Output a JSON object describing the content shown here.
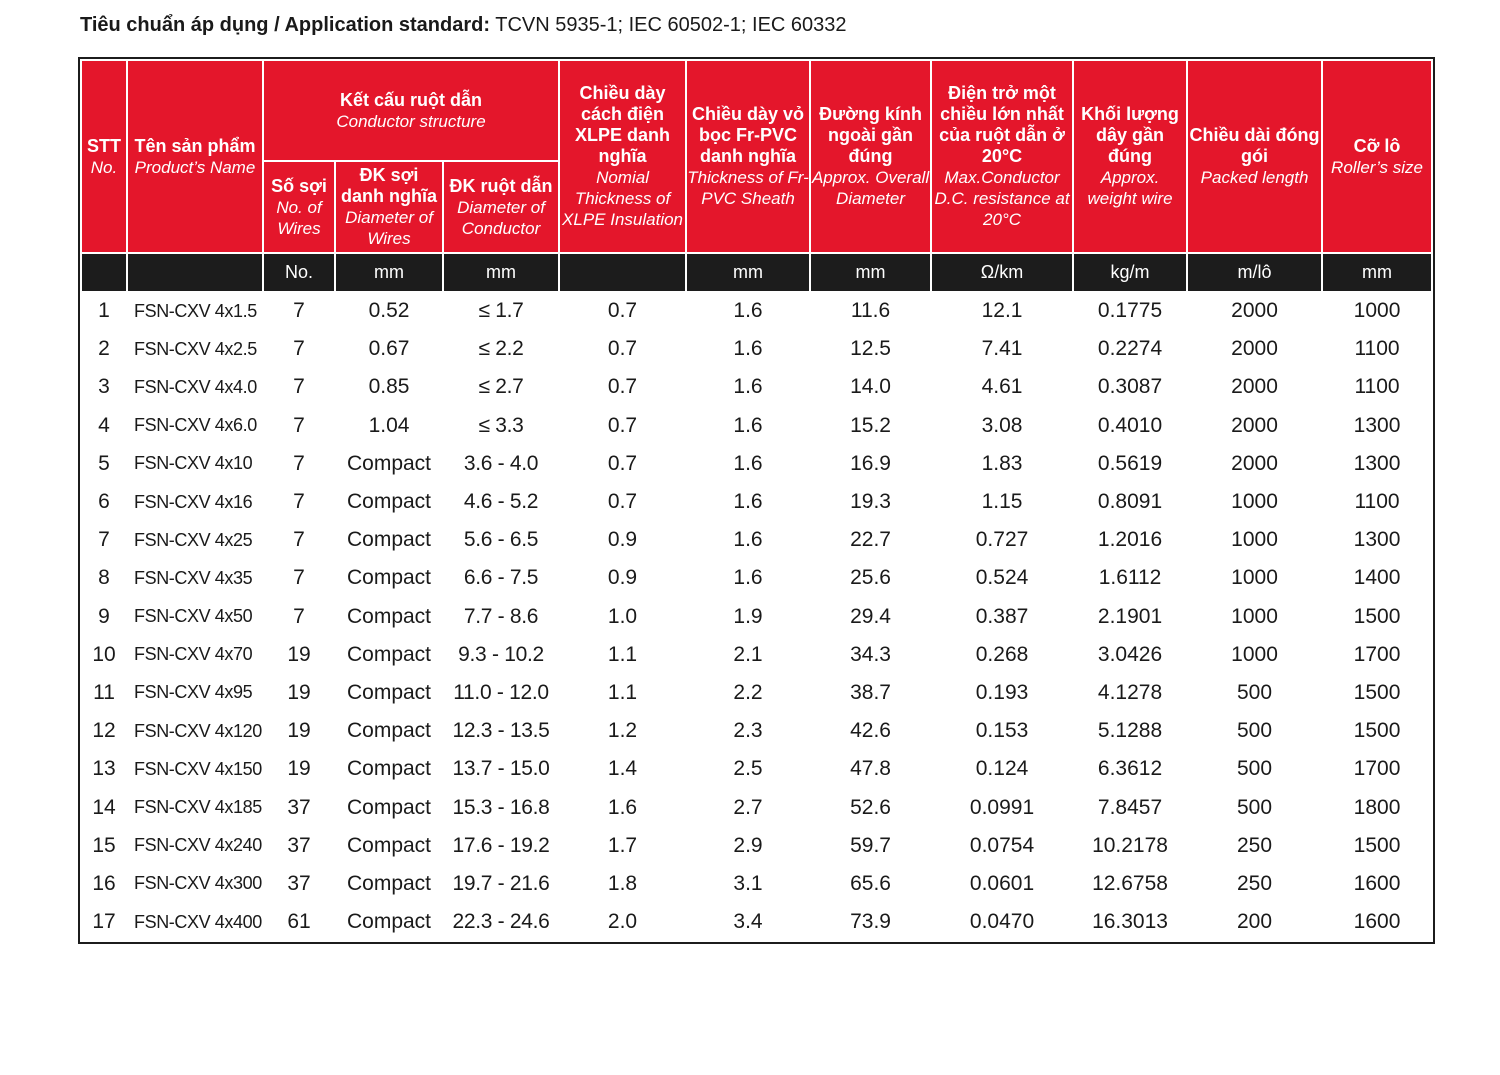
{
  "standard": {
    "label": "Tiêu chuẩn áp dụng / Application standard:",
    "value": "TCVN 5935-1; IEC 60502-1; IEC 60332"
  },
  "headers": {
    "stt": {
      "vi": "STT",
      "en": "No."
    },
    "name": {
      "vi": "Tên sản phẩm",
      "en": "Product’s Name"
    },
    "conductor": {
      "vi": "Kết cấu ruột dẫn",
      "en": "Conductor structure"
    },
    "wires": {
      "vi": "Số sợi",
      "en": "No. of Wires"
    },
    "wire_dia": {
      "vi": "ĐK sợi danh nghĩa",
      "en": "Diameter of Wires"
    },
    "cond_dia": {
      "vi": "ĐK ruột dẫn",
      "en": "Diameter of Conductor"
    },
    "insulation": {
      "vi": "Chiều dày cách điện XLPE danh nghĩa",
      "en": "Nomial Thickness of XLPE Insulation"
    },
    "sheath": {
      "vi": "Chiều dày vỏ bọc Fr-PVC danh nghĩa",
      "en": "Thickness of Fr-PVC Sheath"
    },
    "diameter": {
      "vi": "Đường kính ngoài gần đúng",
      "en": "Approx. Overall Diameter"
    },
    "resistance": {
      "vi": "Điện trở một chiều lớn nhất của ruột dẫn ở 20°C",
      "en": "Max.Conductor D.C. resistance at 20°C"
    },
    "weight": {
      "vi": "Khối lượng dây gần đúng",
      "en": "Approx. weight wire"
    },
    "length": {
      "vi": "Chiều dài đóng gói",
      "en": "Packed length"
    },
    "roller": {
      "vi": "Cỡ lô",
      "en": "Roller’s size"
    }
  },
  "units": [
    "",
    "",
    "No.",
    "mm",
    "mm",
    "",
    "mm",
    "mm",
    "Ω/km",
    "kg/m",
    "m/lô",
    "mm"
  ],
  "rows": [
    [
      "1",
      "FSN-CXV 4x1.5",
      "7",
      "0.52",
      "≤ 1.7",
      "0.7",
      "1.6",
      "11.6",
      "12.1",
      "0.1775",
      "2000",
      "1000"
    ],
    [
      "2",
      "FSN-CXV 4x2.5",
      "7",
      "0.67",
      "≤ 2.2",
      "0.7",
      "1.6",
      "12.5",
      "7.41",
      "0.2274",
      "2000",
      "1100"
    ],
    [
      "3",
      "FSN-CXV 4x4.0",
      "7",
      "0.85",
      "≤ 2.7",
      "0.7",
      "1.6",
      "14.0",
      "4.61",
      "0.3087",
      "2000",
      "1100"
    ],
    [
      "4",
      "FSN-CXV 4x6.0",
      "7",
      "1.04",
      "≤ 3.3",
      "0.7",
      "1.6",
      "15.2",
      "3.08",
      "0.4010",
      "2000",
      "1300"
    ],
    [
      "5",
      "FSN-CXV 4x10",
      "7",
      "Compact",
      "3.6 - 4.0",
      "0.7",
      "1.6",
      "16.9",
      "1.83",
      "0.5619",
      "2000",
      "1300"
    ],
    [
      "6",
      "FSN-CXV 4x16",
      "7",
      "Compact",
      "4.6 - 5.2",
      "0.7",
      "1.6",
      "19.3",
      "1.15",
      "0.8091",
      "1000",
      "1100"
    ],
    [
      "7",
      "FSN-CXV 4x25",
      "7",
      "Compact",
      "5.6 - 6.5",
      "0.9",
      "1.6",
      "22.7",
      "0.727",
      "1.2016",
      "1000",
      "1300"
    ],
    [
      "8",
      "FSN-CXV 4x35",
      "7",
      "Compact",
      "6.6 - 7.5",
      "0.9",
      "1.6",
      "25.6",
      "0.524",
      "1.6112",
      "1000",
      "1400"
    ],
    [
      "9",
      "FSN-CXV 4x50",
      "7",
      "Compact",
      "7.7 - 8.6",
      "1.0",
      "1.9",
      "29.4",
      "0.387",
      "2.1901",
      "1000",
      "1500"
    ],
    [
      "10",
      "FSN-CXV 4x70",
      "19",
      "Compact",
      "9.3 - 10.2",
      "1.1",
      "2.1",
      "34.3",
      "0.268",
      "3.0426",
      "1000",
      "1700"
    ],
    [
      "11",
      "FSN-CXV 4x95",
      "19",
      "Compact",
      "11.0 - 12.0",
      "1.1",
      "2.2",
      "38.7",
      "0.193",
      "4.1278",
      "500",
      "1500"
    ],
    [
      "12",
      "FSN-CXV 4x120",
      "19",
      "Compact",
      "12.3 - 13.5",
      "1.2",
      "2.3",
      "42.6",
      "0.153",
      "5.1288",
      "500",
      "1500"
    ],
    [
      "13",
      "FSN-CXV 4x150",
      "19",
      "Compact",
      "13.7 - 15.0",
      "1.4",
      "2.5",
      "47.8",
      "0.124",
      "6.3612",
      "500",
      "1700"
    ],
    [
      "14",
      "FSN-CXV 4x185",
      "37",
      "Compact",
      "15.3 - 16.8",
      "1.6",
      "2.7",
      "52.6",
      "0.0991",
      "7.8457",
      "500",
      "1800"
    ],
    [
      "15",
      "FSN-CXV 4x240",
      "37",
      "Compact",
      "17.6 - 19.2",
      "1.7",
      "2.9",
      "59.7",
      "0.0754",
      "10.2178",
      "250",
      "1500"
    ],
    [
      "16",
      "FSN-CXV 4x300",
      "37",
      "Compact",
      "19.7 - 21.6",
      "1.8",
      "3.1",
      "65.6",
      "0.0601",
      "12.6758",
      "250",
      "1600"
    ],
    [
      "17",
      "FSN-CXV 4x400",
      "61",
      "Compact",
      "22.3 - 24.6",
      "2.0",
      "3.4",
      "73.9",
      "0.0470",
      "16.3013",
      "200",
      "1600"
    ]
  ],
  "colors": {
    "header_red": "#e4162b",
    "unit_bar": "#1c1c1c"
  }
}
